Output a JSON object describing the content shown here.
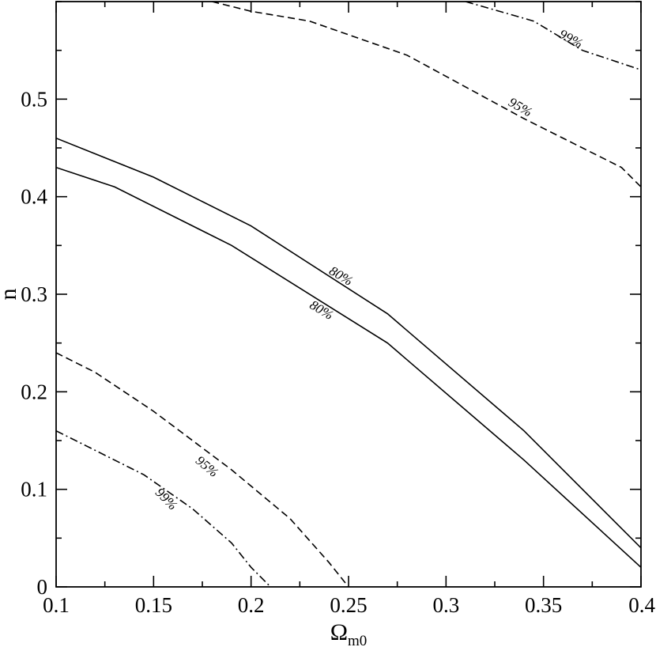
{
  "chart_data": {
    "type": "line",
    "title": "",
    "xlabel": "Ω",
    "xlabel_sub": "m0",
    "ylabel": "n",
    "xlim": [
      0.1,
      0.4
    ],
    "ylim": [
      0,
      0.6
    ],
    "x_ticks": [
      0.1,
      0.15,
      0.2,
      0.25,
      0.3,
      0.35,
      0.4
    ],
    "x_tick_labels": [
      "0.1",
      "0.15",
      "0.2",
      "0.25",
      "0.3",
      "0.35",
      "0.4"
    ],
    "y_ticks": [
      0,
      0.1,
      0.2,
      0.3,
      0.4,
      0.5
    ],
    "y_tick_labels": [
      "0",
      "0.1",
      "0.2",
      "0.3",
      "0.4",
      "0.5"
    ],
    "grid": false,
    "series": [
      {
        "label": "80%",
        "style": "solid",
        "points": [
          [
            0.1,
            0.46
          ],
          [
            0.15,
            0.42
          ],
          [
            0.2,
            0.37
          ],
          [
            0.27,
            0.28
          ],
          [
            0.34,
            0.16
          ],
          [
            0.4,
            0.04
          ]
        ],
        "label_at": [
          0.245,
          0.315
        ],
        "label_angle": 31
      },
      {
        "label": "80%",
        "style": "solid",
        "points": [
          [
            0.1,
            0.43
          ],
          [
            0.13,
            0.41
          ],
          [
            0.19,
            0.35
          ],
          [
            0.27,
            0.25
          ],
          [
            0.34,
            0.13
          ],
          [
            0.4,
            0.02
          ]
        ],
        "label_at": [
          0.235,
          0.28
        ],
        "label_angle": 31
      },
      {
        "label": "95%",
        "style": "dashed",
        "points": [
          [
            0.18,
            0.6
          ],
          [
            0.2,
            0.59
          ],
          [
            0.23,
            0.58
          ],
          [
            0.28,
            0.545
          ],
          [
            0.34,
            0.48
          ],
          [
            0.39,
            0.43
          ],
          [
            0.4,
            0.41
          ]
        ],
        "label_at": [
          0.337,
          0.488
        ],
        "label_angle": 30
      },
      {
        "label": "95%",
        "style": "dashed",
        "points": [
          [
            0.1,
            0.24
          ],
          [
            0.12,
            0.22
          ],
          [
            0.15,
            0.18
          ],
          [
            0.19,
            0.12
          ],
          [
            0.22,
            0.07
          ],
          [
            0.24,
            0.025
          ],
          [
            0.25,
            0
          ]
        ],
        "label_at": [
          0.176,
          0.12
        ],
        "label_angle": 40
      },
      {
        "label": "99%",
        "style": "dashdot",
        "points": [
          [
            0.31,
            0.6
          ],
          [
            0.345,
            0.58
          ],
          [
            0.37,
            0.55
          ],
          [
            0.4,
            0.53
          ]
        ],
        "label_at": [
          0.363,
          0.558
        ],
        "label_angle": 28
      },
      {
        "label": "99%",
        "style": "dashdot",
        "points": [
          [
            0.1,
            0.16
          ],
          [
            0.12,
            0.14
          ],
          [
            0.145,
            0.115
          ],
          [
            0.17,
            0.08
          ],
          [
            0.19,
            0.045
          ],
          [
            0.2,
            0.02
          ],
          [
            0.21,
            0
          ]
        ],
        "label_at": [
          0.155,
          0.087
        ],
        "label_angle": 45
      }
    ]
  }
}
